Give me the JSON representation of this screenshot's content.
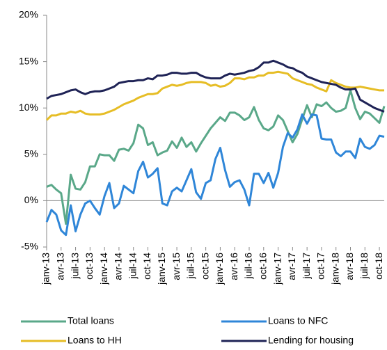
{
  "chart_data": {
    "type": "line",
    "categories": [
      "janv-13",
      null,
      null,
      "avr-13",
      null,
      null,
      "juil-13",
      null,
      null,
      "oct-13",
      null,
      null,
      "janv-14",
      null,
      null,
      "avr-14",
      null,
      null,
      "juil-14",
      null,
      null,
      "oct-14",
      null,
      null,
      "janv-15",
      null,
      null,
      "avr-15",
      null,
      null,
      "juil-15",
      null,
      null,
      "oct-15",
      null,
      null,
      "janv-16",
      null,
      null,
      "avr-16",
      null,
      null,
      "juil-16",
      null,
      null,
      "oct-16",
      null,
      null,
      "janv-17",
      null,
      null,
      "avr-17",
      null,
      null,
      "juil-17",
      null,
      null,
      "oct-17",
      null,
      null,
      "janv-18",
      null,
      null,
      "avr-18",
      null,
      null,
      "juil-18",
      null,
      null,
      "oct-18",
      null
    ],
    "series": [
      {
        "name": "Total loans",
        "color": "#5aa889",
        "values": [
          1.5,
          1.7,
          1.2,
          0.8,
          -2.5,
          2.8,
          1.3,
          1.2,
          2.0,
          3.7,
          3.7,
          5.0,
          4.9,
          4.9,
          4.3,
          5.5,
          5.6,
          5.4,
          6.2,
          8.2,
          7.8,
          6.0,
          6.3,
          4.9,
          5.2,
          5.4,
          6.4,
          5.7,
          6.8,
          5.8,
          6.3,
          5.3,
          6.2,
          7.0,
          7.8,
          8.4,
          9.0,
          8.6,
          9.5,
          9.5,
          9.2,
          8.7,
          9.0,
          10.1,
          8.7,
          7.8,
          7.6,
          8.0,
          9.2,
          8.7,
          7.5,
          6.3,
          7.2,
          8.8,
          10.3,
          9.0,
          10.4,
          10.2,
          10.6,
          10.0,
          9.6,
          9.7,
          10.0,
          11.9,
          10.0,
          8.8,
          9.6,
          9.4,
          8.9,
          8.4,
          10.2
        ]
      },
      {
        "name": "Loans to NFC",
        "color": "#2f86d8",
        "values": [
          -2.3,
          -1.0,
          -1.5,
          -3.2,
          -3.7,
          -0.5,
          -3.3,
          -1.5,
          -0.3,
          0.0,
          -0.8,
          -1.5,
          0.5,
          1.9,
          -0.8,
          -0.3,
          1.6,
          1.2,
          0.8,
          3.2,
          4.2,
          2.5,
          2.9,
          3.5,
          -0.3,
          -0.5,
          1.0,
          1.4,
          1.0,
          2.2,
          3.4,
          0.9,
          0.2,
          1.9,
          2.2,
          4.5,
          5.7,
          3.3,
          1.5,
          2.0,
          2.2,
          1.2,
          -0.5,
          2.9,
          2.9,
          1.9,
          3.0,
          1.4,
          3.0,
          5.8,
          7.3,
          6.8,
          7.7,
          9.3,
          8.3,
          9.3,
          9.2,
          6.7,
          6.6,
          6.6,
          5.2,
          4.8,
          5.3,
          5.3,
          4.6,
          6.7,
          5.8,
          5.6,
          6.0,
          7.0,
          6.9
        ]
      },
      {
        "name": "Loans to HH",
        "color": "#e6bd25",
        "values": [
          8.7,
          9.2,
          9.2,
          9.4,
          9.4,
          9.6,
          9.5,
          9.7,
          9.4,
          9.3,
          9.3,
          9.3,
          9.4,
          9.6,
          9.8,
          10.1,
          10.4,
          10.6,
          10.8,
          11.1,
          11.3,
          11.5,
          11.5,
          11.6,
          12.1,
          12.3,
          12.5,
          12.4,
          12.5,
          12.7,
          12.8,
          12.8,
          12.8,
          12.7,
          12.4,
          12.5,
          12.3,
          12.4,
          12.7,
          13.2,
          13.2,
          13.1,
          13.3,
          13.3,
          13.5,
          13.5,
          13.8,
          13.8,
          13.9,
          13.8,
          13.7,
          13.2,
          13.0,
          12.8,
          12.6,
          12.5,
          12.2,
          12.0,
          11.8,
          13.0,
          12.7,
          12.5,
          12.3,
          12.2,
          12.2,
          12.3,
          12.2,
          12.1,
          12.0,
          11.9,
          11.9
        ]
      },
      {
        "name": "Lending for housing",
        "color": "#1f2356",
        "values": [
          11.0,
          11.3,
          11.4,
          11.5,
          11.7,
          11.9,
          12.0,
          11.7,
          11.5,
          11.7,
          11.8,
          11.8,
          11.9,
          12.1,
          12.3,
          12.7,
          12.8,
          12.9,
          12.9,
          13.0,
          13.0,
          13.2,
          13.1,
          13.5,
          13.5,
          13.6,
          13.8,
          13.8,
          13.7,
          13.7,
          13.8,
          13.8,
          13.5,
          13.3,
          13.2,
          13.2,
          13.2,
          13.5,
          13.7,
          13.6,
          13.7,
          13.8,
          14.0,
          14.1,
          14.4,
          14.9,
          14.9,
          15.1,
          14.9,
          14.7,
          14.4,
          14.3,
          14.0,
          13.8,
          13.4,
          13.2,
          13.0,
          12.8,
          12.7,
          12.6,
          12.5,
          12.2,
          12.0,
          12.0,
          12.1,
          10.9,
          10.6,
          10.3,
          10.0,
          9.8,
          9.6
        ]
      }
    ],
    "ylim": [
      -5,
      20
    ],
    "yticks": [
      {
        "value": -5,
        "label": "-5%"
      },
      {
        "value": 0,
        "label": "0%"
      },
      {
        "value": 5,
        "label": "5%"
      },
      {
        "value": 10,
        "label": "10%"
      },
      {
        "value": 15,
        "label": "15%"
      },
      {
        "value": 20,
        "label": "20%"
      }
    ],
    "grid": false
  }
}
